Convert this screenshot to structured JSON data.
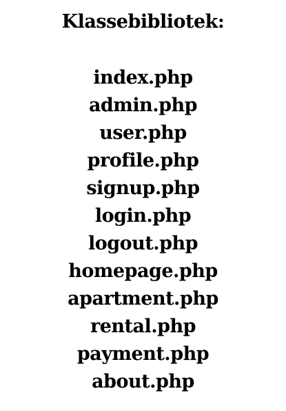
{
  "document": {
    "title": "Klassebibliotek:",
    "files": [
      "index.php",
      "admin.php",
      "user.php",
      "profile.php",
      "signup.php",
      "login.php",
      "logout.php",
      "homepage.php",
      "apartment.php",
      "rental.php",
      "payment.php",
      "about.php"
    ]
  }
}
